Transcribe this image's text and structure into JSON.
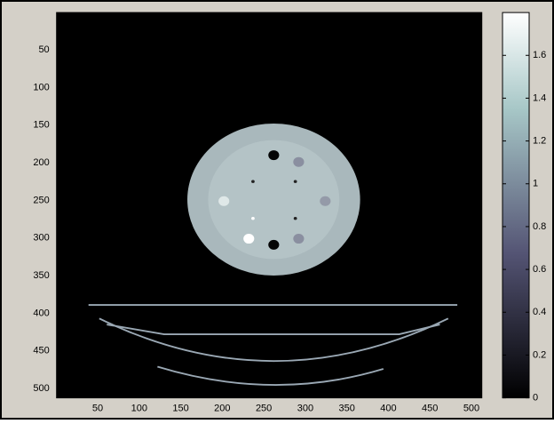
{
  "chart_data": {
    "type": "image",
    "xlim": [
      0.5,
      512.5
    ],
    "ylim": [
      512.5,
      0.5
    ],
    "xticks": [
      50,
      100,
      150,
      200,
      250,
      300,
      350,
      400,
      450,
      500
    ],
    "yticks": [
      50,
      100,
      150,
      200,
      250,
      300,
      350,
      400,
      450,
      500
    ],
    "colormap": "bone",
    "clim": [
      0,
      1.8
    ],
    "cticks": [
      0,
      0.2,
      0.4,
      0.6,
      0.8,
      1,
      1.2,
      1.4,
      1.6
    ]
  }
}
